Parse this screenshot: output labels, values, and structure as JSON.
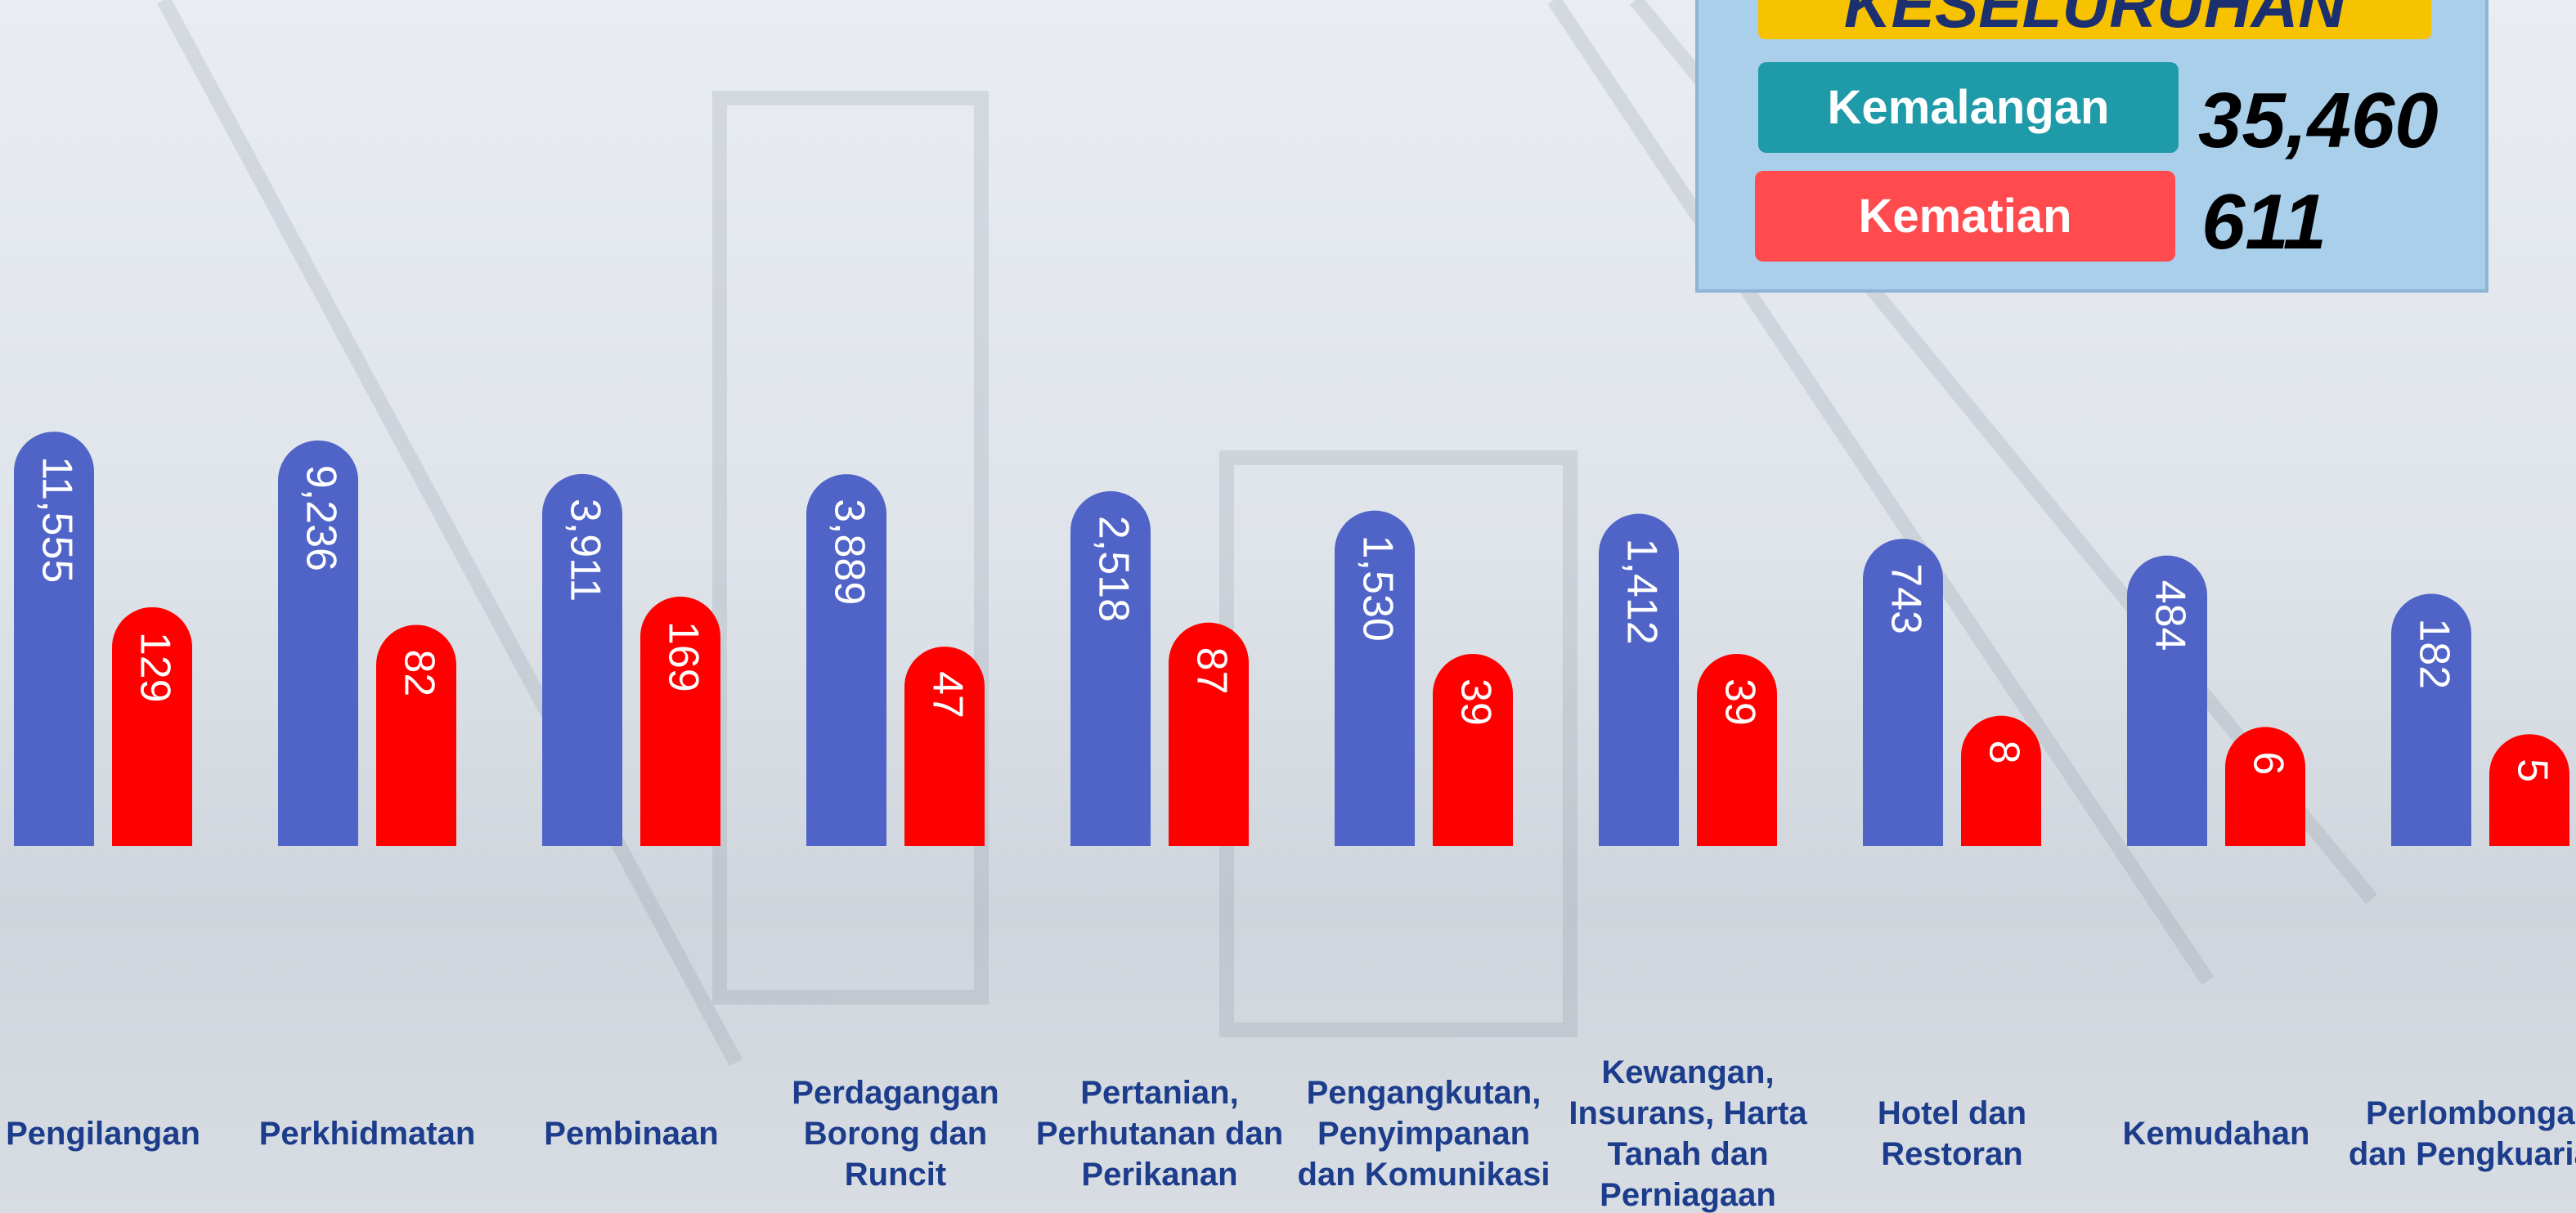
{
  "chart_data": {
    "type": "bar",
    "categories": [
      "Pengilangan",
      "Perkhidmatan",
      "Pembinaan",
      "Perdagangan Borong dan Runcit",
      "Pertanian, Perhutanan dan Perikanan",
      "Pengangkutan, Penyimpanan dan Komunikasi",
      "Kewangan, Insurans, Harta Tanah dan Perniagaan",
      "Hotel dan Restoran",
      "Kemudahan",
      "Perlombongan dan Pengkuarian"
    ],
    "series": [
      {
        "name": "Kemalangan",
        "color": "#5064c8",
        "values": [
          11555,
          9236,
          3911,
          3889,
          2518,
          1530,
          1412,
          743,
          484,
          182
        ],
        "value_labels": [
          "11,555",
          "9,236",
          "3,911",
          "3,889",
          "2,518",
          "1,530",
          "1,412",
          "743",
          "484",
          "182"
        ]
      },
      {
        "name": "Kematian",
        "color": "#ff0000",
        "values": [
          129,
          82,
          169,
          47,
          87,
          39,
          39,
          8,
          6,
          5
        ]
      }
    ]
  },
  "summary": {
    "title": "KESELURUHAN",
    "items": [
      {
        "name": "Kemalangan",
        "total": "35,460"
      },
      {
        "name": "Kematian",
        "total": "611"
      }
    ]
  }
}
